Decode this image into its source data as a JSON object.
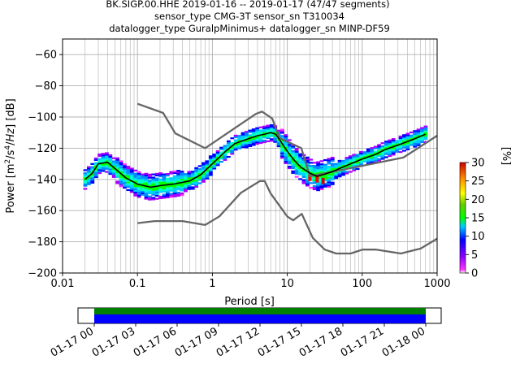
{
  "title_lines": [
    "BK.SIGP.00.HHE   2019-01-16 -- 2019-01-17  (47/47 segments)",
    "sensor_type CMG-3T sensor_sn T310034",
    "datalogger_type GuralpMinimus+ datalogger_sn MINP-DF59"
  ],
  "chart_data": {
    "type": "heatmap",
    "xlabel": "Period [s]",
    "ylabel": "Power [m²/s⁴/Hz] [dB]",
    "x_scale": "log",
    "xlim": [
      0.01,
      1000
    ],
    "ylim": [
      -200,
      -50
    ],
    "x_ticks": [
      0.01,
      0.1,
      1,
      10,
      100,
      1000
    ],
    "x_tick_labels": [
      "0.01",
      "0.1",
      "1",
      "10",
      "100",
      "1000"
    ],
    "y_ticks": [
      -200,
      -180,
      -160,
      -140,
      -120,
      -100,
      -80,
      -60
    ],
    "y_tick_labels": [
      "−200",
      "−180",
      "−160",
      "−140",
      "−120",
      "−100",
      "−80",
      "−60"
    ],
    "grid": true,
    "mode_curve": {
      "name": "mode",
      "color": "#000000",
      "x": [
        0.02,
        0.025,
        0.03,
        0.04,
        0.05,
        0.07,
        0.1,
        0.15,
        0.2,
        0.3,
        0.5,
        0.7,
        1,
        1.5,
        2,
        3,
        4,
        5,
        6,
        7,
        8,
        10,
        12,
        15,
        20,
        25,
        30,
        40,
        50,
        70,
        100,
        150,
        200,
        300,
        500,
        700
      ],
      "y": [
        -140,
        -136,
        -130,
        -129,
        -133,
        -139,
        -143,
        -145,
        -144,
        -143,
        -141,
        -137,
        -130,
        -122,
        -117,
        -114,
        -112,
        -111,
        -110,
        -111,
        -115,
        -122,
        -127,
        -132,
        -136,
        -138,
        -137,
        -135,
        -133,
        -130,
        -127,
        -124,
        -121,
        -118,
        -114,
        -111
      ]
    },
    "nhnm": {
      "name": "NHNM",
      "color": "#666666",
      "x": [
        0.1,
        0.22,
        0.32,
        0.8,
        3.8,
        4.6,
        6.3,
        7.9,
        15.4,
        20,
        354.8,
        1000
      ],
      "y": [
        -91.5,
        -97.4,
        -110.5,
        -120,
        -98,
        -96.5,
        -101,
        -113.5,
        -120,
        -138,
        -126,
        -112
      ]
    },
    "nlnm": {
      "name": "NLNM",
      "color": "#666666",
      "x": [
        0.1,
        0.17,
        0.4,
        0.8,
        1.24,
        2.4,
        4.3,
        5,
        6,
        10,
        12,
        15.6,
        21.9,
        31.6,
        45,
        70,
        101,
        154,
        328,
        600,
        1000
      ],
      "y": [
        -168,
        -166.7,
        -166.7,
        -169.2,
        -163.7,
        -148.6,
        -141.1,
        -141.1,
        -149,
        -163.8,
        -166.2,
        -162.1,
        -177.5,
        -185,
        -187.5,
        -187.5,
        -185,
        -185,
        -187.5,
        -184.4,
        -178
      ]
    },
    "histogram_color_range_percent": [
      0,
      30
    ],
    "colorbar": {
      "label": "[%]",
      "ticks": [
        0,
        5,
        10,
        15,
        20,
        25,
        30
      ],
      "tick_labels": [
        "0",
        "5",
        "10",
        "15",
        "20",
        "25",
        "30"
      ],
      "colormap": "pqlx"
    },
    "coverage_bar": {
      "time_tick_labels": [
        "01-17 00",
        "01-17 03",
        "01-17 06",
        "01-17 09",
        "01-17 12",
        "01-17 15",
        "01-17 18",
        "01-17 21",
        "01-18 00"
      ],
      "rows": [
        {
          "color": "#008000"
        },
        {
          "color": "#0000ff"
        }
      ]
    }
  }
}
